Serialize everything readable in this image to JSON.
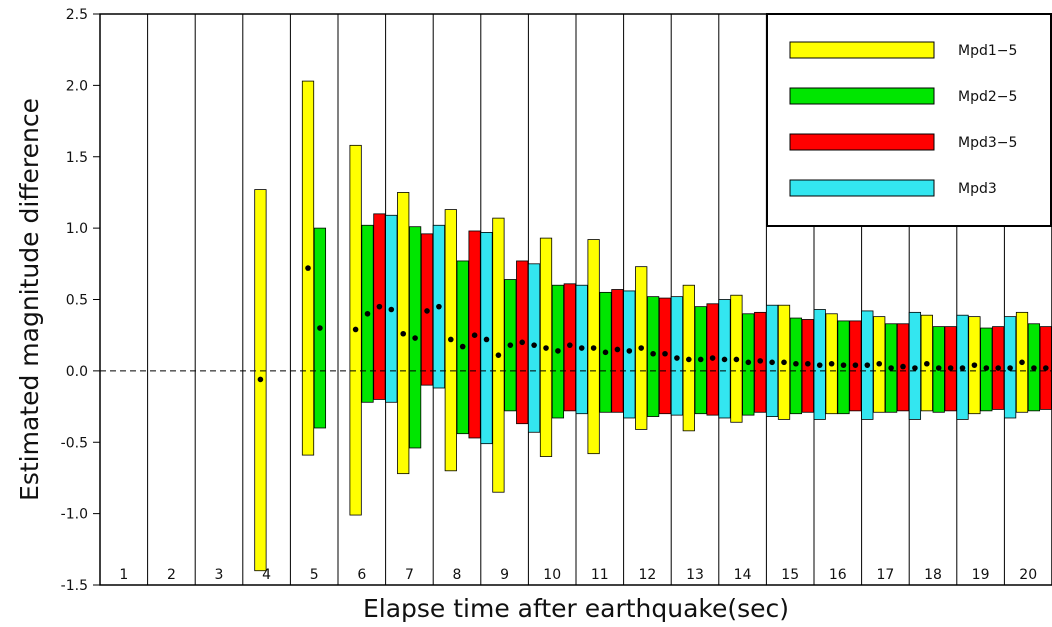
{
  "chart_data": {
    "type": "bar",
    "subtype": "floating-range-with-mean",
    "xlabel": "Elapse time after earthquake(sec)",
    "ylabel": "Estimated magnitude difference",
    "ylim": [
      -1.5,
      2.5
    ],
    "yticks": [
      "-1.5",
      "-1.0",
      "-0.5",
      "0.0",
      "0.5",
      "1.0",
      "1.5",
      "2.0",
      "2.5"
    ],
    "categories": [
      "1",
      "2",
      "3",
      "4",
      "5",
      "6",
      "7",
      "8",
      "9",
      "10",
      "11",
      "12",
      "13",
      "14",
      "15",
      "16",
      "17",
      "18",
      "19",
      "20"
    ],
    "zero_line": "dashed",
    "legend_position": "top-right",
    "series": [
      {
        "name": "Mpd1−5",
        "color": "#ffff00",
        "points": [
          {
            "x": "4",
            "low": -1.4,
            "high": 1.27,
            "mean": -0.06
          },
          {
            "x": "5",
            "low": -0.59,
            "high": 2.03,
            "mean": 0.72
          },
          {
            "x": "6",
            "low": -1.01,
            "high": 1.58,
            "mean": 0.29
          },
          {
            "x": "7",
            "low": -0.72,
            "high": 1.25,
            "mean": 0.26
          },
          {
            "x": "8",
            "low": -0.7,
            "high": 1.13,
            "mean": 0.22
          },
          {
            "x": "9",
            "low": -0.85,
            "high": 1.07,
            "mean": 0.11
          },
          {
            "x": "10",
            "low": -0.6,
            "high": 0.93,
            "mean": 0.16
          },
          {
            "x": "11",
            "low": -0.58,
            "high": 0.92,
            "mean": 0.16
          },
          {
            "x": "12",
            "low": -0.41,
            "high": 0.73,
            "mean": 0.16
          },
          {
            "x": "13",
            "low": -0.42,
            "high": 0.6,
            "mean": 0.08
          },
          {
            "x": "14",
            "low": -0.36,
            "high": 0.53,
            "mean": 0.08
          },
          {
            "x": "15",
            "low": -0.34,
            "high": 0.46,
            "mean": 0.06
          },
          {
            "x": "16",
            "low": -0.3,
            "high": 0.4,
            "mean": 0.05
          },
          {
            "x": "17",
            "low": -0.29,
            "high": 0.38,
            "mean": 0.05
          },
          {
            "x": "18",
            "low": -0.28,
            "high": 0.39,
            "mean": 0.05
          },
          {
            "x": "19",
            "low": -0.3,
            "high": 0.38,
            "mean": 0.04
          },
          {
            "x": "20",
            "low": -0.29,
            "high": 0.41,
            "mean": 0.06
          }
        ]
      },
      {
        "name": "Mpd2−5",
        "color": "#00e600",
        "points": [
          {
            "x": "5",
            "low": -0.4,
            "high": 1.0,
            "mean": 0.3
          },
          {
            "x": "6",
            "low": -0.22,
            "high": 1.02,
            "mean": 0.4
          },
          {
            "x": "7",
            "low": -0.54,
            "high": 1.01,
            "mean": 0.23
          },
          {
            "x": "8",
            "low": -0.44,
            "high": 0.77,
            "mean": 0.17
          },
          {
            "x": "9",
            "low": -0.28,
            "high": 0.64,
            "mean": 0.18
          },
          {
            "x": "10",
            "low": -0.33,
            "high": 0.6,
            "mean": 0.14
          },
          {
            "x": "11",
            "low": -0.29,
            "high": 0.55,
            "mean": 0.13
          },
          {
            "x": "12",
            "low": -0.32,
            "high": 0.52,
            "mean": 0.12
          },
          {
            "x": "13",
            "low": -0.3,
            "high": 0.45,
            "mean": 0.08
          },
          {
            "x": "14",
            "low": -0.31,
            "high": 0.4,
            "mean": 0.06
          },
          {
            "x": "15",
            "low": -0.3,
            "high": 0.37,
            "mean": 0.05
          },
          {
            "x": "16",
            "low": -0.3,
            "high": 0.35,
            "mean": 0.04
          },
          {
            "x": "17",
            "low": -0.29,
            "high": 0.33,
            "mean": 0.02
          },
          {
            "x": "18",
            "low": -0.29,
            "high": 0.31,
            "mean": 0.02
          },
          {
            "x": "19",
            "low": -0.28,
            "high": 0.3,
            "mean": 0.02
          },
          {
            "x": "20",
            "low": -0.28,
            "high": 0.33,
            "mean": 0.02
          }
        ]
      },
      {
        "name": "Mpd3−5",
        "color": "#ff0000",
        "points": [
          {
            "x": "6",
            "low": -0.2,
            "high": 1.1,
            "mean": 0.45
          },
          {
            "x": "7",
            "low": -0.1,
            "high": 0.96,
            "mean": 0.42
          },
          {
            "x": "8",
            "low": -0.47,
            "high": 0.98,
            "mean": 0.25
          },
          {
            "x": "9",
            "low": -0.37,
            "high": 0.77,
            "mean": 0.2
          },
          {
            "x": "10",
            "low": -0.28,
            "high": 0.61,
            "mean": 0.18
          },
          {
            "x": "11",
            "low": -0.29,
            "high": 0.57,
            "mean": 0.15
          },
          {
            "x": "12",
            "low": -0.3,
            "high": 0.51,
            "mean": 0.12
          },
          {
            "x": "13",
            "low": -0.31,
            "high": 0.47,
            "mean": 0.09
          },
          {
            "x": "14",
            "low": -0.29,
            "high": 0.41,
            "mean": 0.07
          },
          {
            "x": "15",
            "low": -0.29,
            "high": 0.36,
            "mean": 0.05
          },
          {
            "x": "16",
            "low": -0.28,
            "high": 0.35,
            "mean": 0.04
          },
          {
            "x": "17",
            "low": -0.28,
            "high": 0.33,
            "mean": 0.03
          },
          {
            "x": "18",
            "low": -0.28,
            "high": 0.31,
            "mean": 0.02
          },
          {
            "x": "19",
            "low": -0.27,
            "high": 0.31,
            "mean": 0.02
          },
          {
            "x": "20",
            "low": -0.27,
            "high": 0.31,
            "mean": 0.02
          }
        ]
      },
      {
        "name": "Mpd3",
        "color": "#33e6f0",
        "points": [
          {
            "x": "6",
            "low": -0.22,
            "high": 1.09,
            "mean": 0.43
          },
          {
            "x": "7",
            "low": -0.12,
            "high": 1.02,
            "mean": 0.45
          },
          {
            "x": "8",
            "low": -0.51,
            "high": 0.97,
            "mean": 0.22
          },
          {
            "x": "9",
            "low": -0.43,
            "high": 0.75,
            "mean": 0.18
          },
          {
            "x": "10",
            "low": -0.3,
            "high": 0.6,
            "mean": 0.16
          },
          {
            "x": "11",
            "low": -0.33,
            "high": 0.56,
            "mean": 0.14
          },
          {
            "x": "12",
            "low": -0.31,
            "high": 0.52,
            "mean": 0.09
          },
          {
            "x": "13",
            "low": -0.33,
            "high": 0.5,
            "mean": 0.08
          },
          {
            "x": "14",
            "low": -0.32,
            "high": 0.46,
            "mean": 0.06
          },
          {
            "x": "15",
            "low": -0.34,
            "high": 0.43,
            "mean": 0.04
          },
          {
            "x": "16",
            "low": -0.34,
            "high": 0.42,
            "mean": 0.04
          },
          {
            "x": "17",
            "low": -0.34,
            "high": 0.41,
            "mean": 0.02
          },
          {
            "x": "18",
            "low": -0.34,
            "high": 0.39,
            "mean": 0.02
          },
          {
            "x": "19",
            "low": -0.33,
            "high": 0.38,
            "mean": 0.02
          },
          {
            "x": "20",
            "low": -0.33,
            "high": 0.4,
            "mean": 0.03
          }
        ]
      }
    ]
  }
}
